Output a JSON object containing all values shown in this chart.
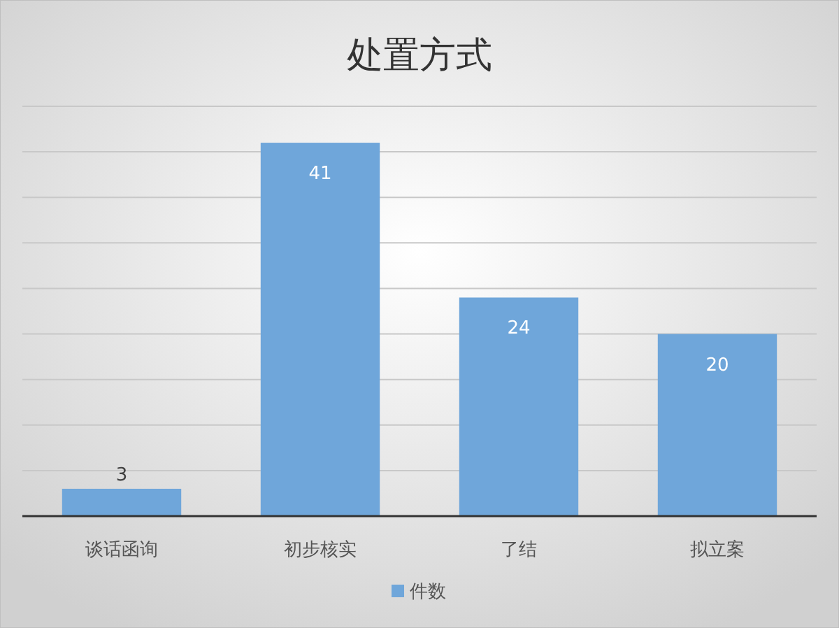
{
  "chart_data": {
    "type": "bar",
    "title": "处置方式",
    "categories": [
      "谈话函询",
      "初步核实",
      "了结",
      "拟立案"
    ],
    "series": [
      {
        "name": "件数",
        "color": "#6fa6da",
        "values": [
          3,
          41,
          24,
          20
        ]
      }
    ],
    "ylim": [
      0,
      45
    ],
    "yticks": [
      {
        "value": 0,
        "label": null
      },
      {
        "value": 5,
        "label": null
      },
      {
        "value": 10,
        "label": null
      },
      {
        "value": 15,
        "label": null
      },
      {
        "value": 20,
        "label": null
      },
      {
        "value": 25,
        "label": null
      },
      {
        "value": 30,
        "label": null
      },
      {
        "value": 35,
        "label": null
      },
      {
        "value": 40,
        "label": null
      },
      {
        "value": 45,
        "label": null
      }
    ],
    "tick_labels": "x",
    "grid": "y",
    "legend": "bottom",
    "data_labels": true
  }
}
